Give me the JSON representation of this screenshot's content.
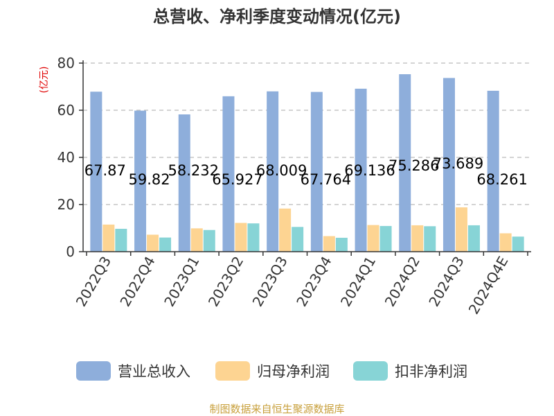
{
  "chart_data": {
    "type": "bar",
    "title": "总营收、净利季度变动情况(亿元)",
    "ylabel": "(亿元)",
    "ylim": [
      0,
      80
    ],
    "yticks": [
      0,
      20,
      40,
      60,
      80
    ],
    "grid": true,
    "legend_position": "bottom",
    "categories": [
      "2022Q3",
      "2022Q4",
      "2023Q1",
      "2023Q2",
      "2023Q3",
      "2023Q4",
      "2024Q1",
      "2024Q2",
      "2024Q3",
      "2024Q4E"
    ],
    "series": [
      {
        "name": "营业总收入",
        "color": "#8eaedb",
        "values": [
          67.87,
          59.82,
          58.232,
          65.927,
          68.009,
          67.764,
          69.136,
          75.286,
          73.689,
          68.261
        ]
      },
      {
        "name": "归母净利润",
        "color": "#fdd492",
        "values": [
          11.5,
          7.2,
          9.9,
          12.2,
          18.3,
          6.6,
          11.3,
          11.2,
          18.8,
          7.8
        ]
      },
      {
        "name": "扣非净利润",
        "color": "#87d4d6",
        "values": [
          9.7,
          6.0,
          9.2,
          12.0,
          10.5,
          5.9,
          10.9,
          10.8,
          11.2,
          6.4
        ]
      }
    ],
    "data_labels": [
      "67.87",
      "59.82",
      "58.232",
      "65.927",
      "68.009",
      "67.764",
      "69.136",
      "75.286",
      "73.689",
      "68.261"
    ]
  },
  "footer": {
    "source": "制图数据来自恒生聚源数据库"
  }
}
